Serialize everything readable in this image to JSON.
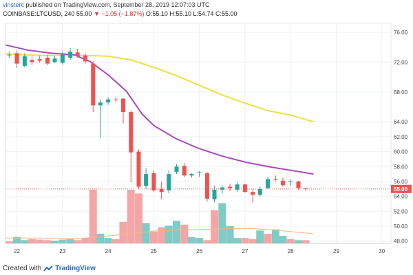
{
  "header": {
    "user": "vinsterc",
    "publish_text": "published on TradingView.com, September 28, 2019 12:07:03 UTC"
  },
  "ticker": {
    "symbol": "COINBASE:LTCUSD, 240",
    "price": "55.00",
    "change": "▼ −1.05 (−1.87%)",
    "ohlc": "O:55.10 H:55.10 L:54.74 C:55.00"
  },
  "footer": {
    "created_with": "Created with",
    "brand": "TradingView"
  },
  "colors": {
    "up": "#26a69a",
    "down": "#ef5350",
    "ma_fast": "#ab47bc",
    "ma_slow": "#f0e142",
    "vol_up": "#80cbc4",
    "vol_down": "#f4a6a6",
    "vol_ma": "#f5b784",
    "last_price_tag": "#ef5350"
  },
  "chart_data": {
    "type": "candlestick",
    "x_tick_labels": [
      "22",
      "23",
      "24",
      "25",
      "26",
      "27",
      "28",
      "29",
      "30"
    ],
    "x_tick_days": [
      22,
      23,
      24,
      25,
      26,
      27,
      28,
      29,
      30
    ],
    "xlim": [
      21.75,
      30.2
    ],
    "y_tick_labels": [
      "48.00",
      "50.00",
      "52.00",
      "54.00",
      "56.00",
      "58.00",
      "60.00",
      "62.00",
      "64.00",
      "68.00",
      "72.00",
      "76.00"
    ],
    "y_ticks": [
      48,
      50,
      52,
      54,
      56,
      58,
      60,
      62,
      64,
      68,
      72,
      76
    ],
    "ylim": [
      47.7,
      77.2
    ],
    "last_price": "55.00",
    "candles": [
      {
        "t": 21.83,
        "o": 73.0,
        "h": 73.4,
        "l": 72.6,
        "c": 73.0
      },
      {
        "t": 22.0,
        "o": 73.2,
        "h": 73.6,
        "l": 71.2,
        "c": 71.8
      },
      {
        "t": 22.17,
        "o": 71.5,
        "h": 73.2,
        "l": 71.3,
        "c": 72.8
      },
      {
        "t": 22.33,
        "o": 72.3,
        "h": 72.8,
        "l": 71.6,
        "c": 72.0
      },
      {
        "t": 22.5,
        "o": 72.4,
        "h": 72.9,
        "l": 71.9,
        "c": 72.2
      },
      {
        "t": 22.67,
        "o": 72.6,
        "h": 73.0,
        "l": 71.6,
        "c": 71.8
      },
      {
        "t": 22.83,
        "o": 72.0,
        "h": 72.8,
        "l": 71.9,
        "c": 72.5
      },
      {
        "t": 23.0,
        "o": 71.9,
        "h": 73.4,
        "l": 71.7,
        "c": 73.0
      },
      {
        "t": 23.17,
        "o": 72.6,
        "h": 73.9,
        "l": 72.3,
        "c": 73.4
      },
      {
        "t": 23.33,
        "o": 73.3,
        "h": 73.8,
        "l": 72.6,
        "c": 72.8
      },
      {
        "t": 23.5,
        "o": 72.9,
        "h": 73.2,
        "l": 71.8,
        "c": 72.1
      },
      {
        "t": 23.67,
        "o": 71.8,
        "h": 72.1,
        "l": 65.3,
        "c": 66.2
      },
      {
        "t": 23.83,
        "o": 66.2,
        "h": 67.0,
        "l": 61.9,
        "c": 66.6
      },
      {
        "t": 24.0,
        "o": 66.6,
        "h": 67.3,
        "l": 66.3,
        "c": 67.0
      },
      {
        "t": 24.17,
        "o": 67.0,
        "h": 67.4,
        "l": 66.7,
        "c": 66.9
      },
      {
        "t": 24.33,
        "o": 67.1,
        "h": 67.2,
        "l": 63.8,
        "c": 65.3
      },
      {
        "t": 24.5,
        "o": 65.3,
        "h": 65.5,
        "l": 55.9,
        "c": 59.9
      },
      {
        "t": 24.67,
        "o": 60.0,
        "h": 60.3,
        "l": 55.0,
        "c": 55.3
      },
      {
        "t": 24.83,
        "o": 55.4,
        "h": 57.8,
        "l": 55.0,
        "c": 57.0
      },
      {
        "t": 25.0,
        "o": 57.1,
        "h": 57.5,
        "l": 54.6,
        "c": 54.8
      },
      {
        "t": 25.17,
        "o": 55.0,
        "h": 56.0,
        "l": 53.6,
        "c": 54.6
      },
      {
        "t": 25.33,
        "o": 54.8,
        "h": 57.5,
        "l": 54.4,
        "c": 57.0
      },
      {
        "t": 25.5,
        "o": 57.3,
        "h": 58.3,
        "l": 57.0,
        "c": 58.0
      },
      {
        "t": 25.67,
        "o": 58.1,
        "h": 58.5,
        "l": 56.6,
        "c": 56.8
      },
      {
        "t": 25.83,
        "o": 56.8,
        "h": 57.1,
        "l": 56.5,
        "c": 57.0
      },
      {
        "t": 26.0,
        "o": 57.1,
        "h": 57.4,
        "l": 56.6,
        "c": 57.2
      },
      {
        "t": 26.17,
        "o": 57.1,
        "h": 57.3,
        "l": 53.3,
        "c": 53.7
      },
      {
        "t": 26.33,
        "o": 53.6,
        "h": 55.4,
        "l": 53.2,
        "c": 54.9
      },
      {
        "t": 26.5,
        "o": 54.9,
        "h": 55.5,
        "l": 54.4,
        "c": 55.2
      },
      {
        "t": 26.67,
        "o": 55.3,
        "h": 55.7,
        "l": 54.7,
        "c": 55.1
      },
      {
        "t": 26.83,
        "o": 54.9,
        "h": 55.9,
        "l": 54.6,
        "c": 55.6
      },
      {
        "t": 27.0,
        "o": 55.6,
        "h": 55.7,
        "l": 54.5,
        "c": 54.6
      },
      {
        "t": 27.17,
        "o": 54.6,
        "h": 55.0,
        "l": 53.2,
        "c": 54.2
      },
      {
        "t": 27.33,
        "o": 54.2,
        "h": 55.3,
        "l": 54.0,
        "c": 55.0
      },
      {
        "t": 27.5,
        "o": 55.1,
        "h": 56.6,
        "l": 55.0,
        "c": 56.3
      },
      {
        "t": 27.67,
        "o": 56.3,
        "h": 56.8,
        "l": 56.0,
        "c": 56.2
      },
      {
        "t": 27.83,
        "o": 56.1,
        "h": 56.5,
        "l": 55.3,
        "c": 55.5
      },
      {
        "t": 28.0,
        "o": 55.9,
        "h": 56.3,
        "l": 55.4,
        "c": 56.0
      },
      {
        "t": 28.17,
        "o": 56.0,
        "h": 56.1,
        "l": 54.9,
        "c": 55.1
      },
      {
        "t": 28.33,
        "o": 55.1,
        "h": 55.1,
        "l": 54.7,
        "c": 55.0
      }
    ],
    "ma_slow": {
      "x": [
        21.75,
        22.5,
        23.0,
        23.5,
        24.0,
        24.5,
        25.0,
        25.5,
        26.0,
        26.5,
        27.0,
        27.5,
        28.0,
        28.5
      ],
      "y": [
        73.1,
        72.9,
        72.9,
        72.9,
        72.8,
        72.3,
        71.3,
        70.2,
        68.9,
        67.6,
        66.5,
        65.5,
        64.9,
        64.0
      ]
    },
    "ma_fast": {
      "x": [
        21.75,
        22.25,
        22.75,
        23.25,
        23.6,
        24.0,
        24.4,
        24.75,
        25.0,
        25.5,
        26.0,
        26.5,
        27.0,
        27.5,
        28.0,
        28.5
      ],
      "y": [
        74.3,
        73.6,
        73.2,
        73.0,
        72.1,
        70.3,
        68.1,
        65.0,
        63.5,
        61.7,
        60.4,
        59.4,
        58.6,
        58.0,
        57.5,
        57.0
      ]
    },
    "volume": {
      "max": 100,
      "bars": [
        {
          "t": 21.83,
          "v": 4,
          "up": false
        },
        {
          "t": 22.0,
          "v": 12,
          "up": true
        },
        {
          "t": 22.17,
          "v": 6,
          "up": true
        },
        {
          "t": 22.33,
          "v": 8,
          "up": false
        },
        {
          "t": 22.5,
          "v": 7,
          "up": false
        },
        {
          "t": 22.67,
          "v": 6,
          "up": false
        },
        {
          "t": 22.83,
          "v": 5,
          "up": true
        },
        {
          "t": 23.0,
          "v": 7,
          "up": true
        },
        {
          "t": 23.17,
          "v": 8,
          "up": true
        },
        {
          "t": 23.33,
          "v": 6,
          "up": false
        },
        {
          "t": 23.5,
          "v": 10,
          "up": false
        },
        {
          "t": 23.67,
          "v": 100,
          "up": false
        },
        {
          "t": 23.83,
          "v": 18,
          "up": true
        },
        {
          "t": 24.0,
          "v": 10,
          "up": true
        },
        {
          "t": 24.17,
          "v": 8,
          "up": false
        },
        {
          "t": 24.33,
          "v": 40,
          "up": false
        },
        {
          "t": 24.5,
          "v": 100,
          "up": false
        },
        {
          "t": 24.67,
          "v": 93,
          "up": false
        },
        {
          "t": 24.83,
          "v": 38,
          "up": true
        },
        {
          "t": 25.0,
          "v": 22,
          "up": false
        },
        {
          "t": 25.17,
          "v": 30,
          "up": false
        },
        {
          "t": 25.33,
          "v": 33,
          "up": true
        },
        {
          "t": 25.5,
          "v": 42,
          "up": true
        },
        {
          "t": 25.67,
          "v": 35,
          "up": false
        },
        {
          "t": 25.83,
          "v": 12,
          "up": true
        },
        {
          "t": 26.0,
          "v": 10,
          "up": true
        },
        {
          "t": 26.17,
          "v": 6,
          "up": false
        },
        {
          "t": 26.33,
          "v": 62,
          "up": false
        },
        {
          "t": 26.5,
          "v": 75,
          "up": true
        },
        {
          "t": 26.67,
          "v": 32,
          "up": true
        },
        {
          "t": 26.83,
          "v": 10,
          "up": true
        },
        {
          "t": 27.0,
          "v": 10,
          "up": false
        },
        {
          "t": 27.17,
          "v": 8,
          "up": false
        },
        {
          "t": 27.33,
          "v": 24,
          "up": true
        },
        {
          "t": 27.5,
          "v": 18,
          "up": false
        },
        {
          "t": 27.67,
          "v": 26,
          "up": true
        },
        {
          "t": 27.83,
          "v": 14,
          "up": true
        },
        {
          "t": 28.0,
          "v": 8,
          "up": false
        },
        {
          "t": 28.17,
          "v": 6,
          "up": true
        },
        {
          "t": 28.33,
          "v": 6,
          "up": false
        }
      ],
      "ma": {
        "x": [
          21.75,
          22.5,
          23.0,
          23.5,
          24.0,
          24.5,
          25.0,
          25.5,
          26.0,
          26.5,
          27.0,
          27.5,
          28.0,
          28.5
        ],
        "y": [
          10,
          10,
          9,
          10,
          14,
          18,
          23,
          25,
          26,
          27,
          28,
          26,
          22,
          18
        ]
      }
    }
  }
}
